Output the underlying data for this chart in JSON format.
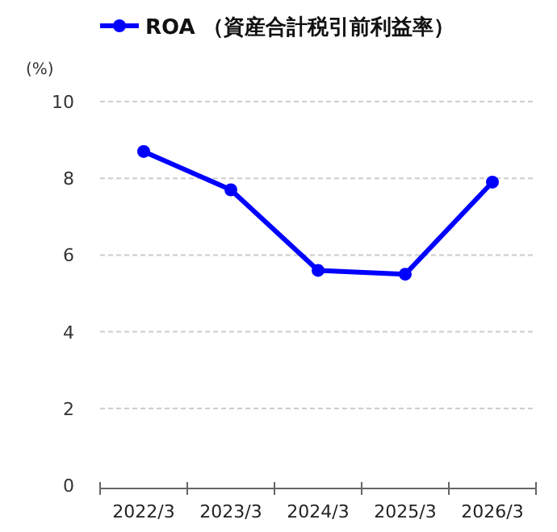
{
  "chart_data": {
    "type": "line",
    "ylabel": "(%)",
    "categories": [
      "2022/3",
      "2023/3",
      "2024/3",
      "2025/3",
      "2026/3"
    ],
    "series": [
      {
        "name": "ROA （資産合計税引前利益率）",
        "color": "#0000ff",
        "values": [
          8.7,
          7.7,
          5.6,
          5.5,
          7.9
        ]
      }
    ],
    "ylim": [
      0,
      10
    ],
    "yticks": [
      0,
      2,
      4,
      6,
      8,
      10
    ],
    "grid": "y",
    "legend": "top",
    "marker": "circle",
    "line_style": "solid"
  }
}
